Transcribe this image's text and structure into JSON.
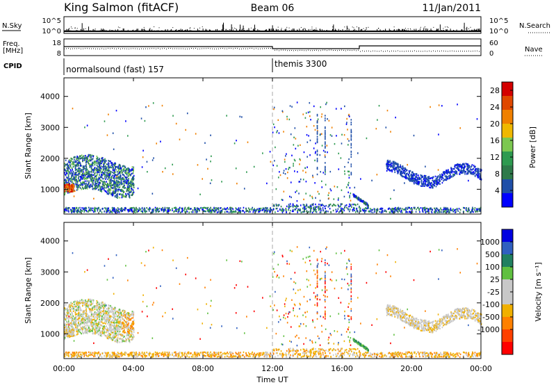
{
  "header": {
    "station": "King Salmon (fitACF)",
    "beam": "Beam 06",
    "date": "11/Jan/2011"
  },
  "sky_panel": {
    "left_label": "N.Sky",
    "left_ticks": [
      "10^5",
      "10^0"
    ],
    "right_ticks": [
      "10^5",
      "10^0"
    ],
    "right_label": "N.Search"
  },
  "freq_panel": {
    "left_label_1": "Freq.",
    "left_label_2": "[MHz]",
    "left_ticks": [
      "18",
      "8"
    ],
    "right_ticks": [
      "60",
      "0"
    ],
    "right_label": "Nave"
  },
  "cpid_panel": {
    "label": "CPID",
    "programs": [
      {
        "name": "normalsound (fast) 157",
        "start_hour": 0
      },
      {
        "name": "themis 3300",
        "start_hour": 12
      }
    ]
  },
  "x_axis": {
    "label": "Time UT",
    "ticks": [
      "00:00",
      "04:00",
      "08:00",
      "12:00",
      "16:00",
      "20:00",
      "00:00"
    ],
    "range_hours": [
      0,
      24
    ]
  },
  "colors": {
    "power_scale": [
      "#0000ff",
      "#1f4fa8",
      "#2e7a4a",
      "#2e9a50",
      "#7cc850",
      "#f0b800",
      "#f08000",
      "#e04800",
      "#d40000"
    ],
    "velocity_scale": [
      "#ff0000",
      "#ff4000",
      "#ff8000",
      "#f0b000",
      "#c8c8c8",
      "#c8c8c8",
      "#60c040",
      "#208060",
      "#3060c0",
      "#0000e0"
    ]
  },
  "chart_data": [
    {
      "type": "heatmap",
      "name": "power",
      "ylabel": "Slant Range [km]",
      "yticks": [
        "1000",
        "2000",
        "3000",
        "4000"
      ],
      "ylim": [
        200,
        4600
      ],
      "colorbar_label": "Power [dB]",
      "colorbar_ticks": [
        "4",
        "8",
        "12",
        "16",
        "20",
        "24",
        "28"
      ],
      "colorbar_range": [
        0,
        30
      ],
      "regions": [
        {
          "t": [
            0.0,
            4.0
          ],
          "r": [
            700,
            2200
          ],
          "level": "mixed-high"
        },
        {
          "t": [
            0.0,
            0.6
          ],
          "r": [
            900,
            1150
          ],
          "level": "very-high"
        },
        {
          "t": [
            16.6,
            17.5
          ],
          "r": [
            450,
            800
          ],
          "level": "mid"
        },
        {
          "t": [
            18.5,
            24.0
          ],
          "r": [
            1000,
            2200
          ],
          "level": "low"
        },
        {
          "t": [
            0.0,
            24.0
          ],
          "r": [
            200,
            500
          ],
          "level": "ground-scatter"
        }
      ]
    },
    {
      "type": "heatmap",
      "name": "velocity",
      "ylabel": "Slant Range [km]",
      "yticks": [
        "1000",
        "2000",
        "3000",
        "4000"
      ],
      "ylim": [
        200,
        4600
      ],
      "colorbar_label": "Velocity [m s⁻¹]",
      "colorbar_ticks": [
        "1000",
        "500",
        "100",
        "25",
        "-25",
        "-100",
        "-500",
        "-1000"
      ],
      "regions": [
        {
          "t": [
            0.0,
            4.0
          ],
          "r": [
            700,
            2200
          ],
          "level": "near-zero"
        },
        {
          "t": [
            3.3,
            4.0
          ],
          "r": [
            1000,
            1600
          ],
          "level": "negative"
        },
        {
          "t": [
            16.6,
            17.5
          ],
          "r": [
            450,
            800
          ],
          "level": "positive"
        },
        {
          "t": [
            18.5,
            24.0
          ],
          "r": [
            1000,
            2200
          ],
          "level": "near-zero"
        },
        {
          "t": [
            0.0,
            24.0
          ],
          "r": [
            200,
            500
          ],
          "level": "negative-low"
        }
      ]
    }
  ]
}
